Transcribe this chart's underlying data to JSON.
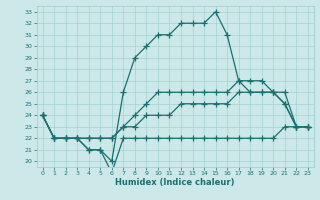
{
  "xlabel": "Humidex (Indice chaleur)",
  "xlim": [
    -0.5,
    23.5
  ],
  "ylim": [
    19.5,
    33.5
  ],
  "xticks": [
    0,
    1,
    2,
    3,
    4,
    5,
    6,
    7,
    8,
    9,
    10,
    11,
    12,
    13,
    14,
    15,
    16,
    17,
    18,
    19,
    20,
    21,
    22,
    23
  ],
  "yticks": [
    20,
    21,
    22,
    23,
    24,
    25,
    26,
    27,
    28,
    29,
    30,
    31,
    32,
    33
  ],
  "background_color": "#cce8e8",
  "grid_color": "#99cccc",
  "line_color": "#1a7070",
  "line_width": 0.9,
  "marker": "+",
  "marker_size": 4,
  "marker_edge_width": 0.9,
  "series": {
    "max": [
      24,
      22,
      22,
      22,
      21,
      21,
      20,
      26,
      29,
      30,
      31,
      31,
      32,
      32,
      32,
      33,
      31,
      27,
      26,
      26,
      26,
      25,
      23,
      23
    ],
    "upper": [
      24,
      22,
      22,
      22,
      22,
      22,
      22,
      23,
      24,
      25,
      26,
      26,
      26,
      26,
      26,
      26,
      26,
      27,
      27,
      27,
      26,
      26,
      23,
      23
    ],
    "lower": [
      24,
      22,
      22,
      22,
      22,
      22,
      22,
      23,
      23,
      24,
      24,
      24,
      25,
      25,
      25,
      25,
      25,
      26,
      26,
      26,
      26,
      25,
      23,
      23
    ],
    "min": [
      24,
      22,
      22,
      22,
      21,
      21,
      19,
      22,
      22,
      22,
      22,
      22,
      22,
      22,
      22,
      22,
      22,
      22,
      22,
      22,
      22,
      23,
      23,
      23
    ]
  }
}
